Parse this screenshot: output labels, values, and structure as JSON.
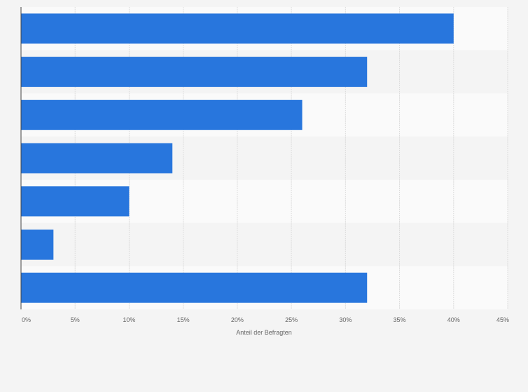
{
  "chart_data": {
    "type": "bar",
    "orientation": "horizontal",
    "title": "",
    "xlabel": "Anteil der Befragten",
    "ylabel": "",
    "categories": [
      "",
      "",
      "",
      "",
      "",
      "",
      ""
    ],
    "values": [
      40,
      32,
      26,
      14,
      10,
      3,
      32
    ],
    "value_unit": "%",
    "xlim": [
      0,
      45
    ],
    "xticks": [
      "0%",
      "5%",
      "10%",
      "15%",
      "20%",
      "25%",
      "30%",
      "35%",
      "40%",
      "45%"
    ],
    "grid": true,
    "legend": "none",
    "colors": {
      "bar": "#2876dd",
      "page_background": "#f4f4f4",
      "band_light": "#fafafa",
      "band_dark": "#f4f4f4",
      "grid": "#dddddd",
      "axis": "#444444",
      "tick_text": "#666666"
    }
  }
}
